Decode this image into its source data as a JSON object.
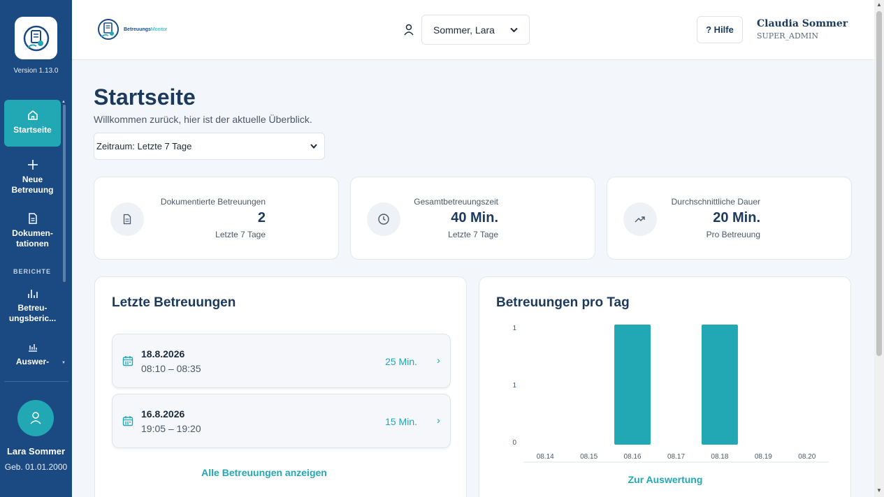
{
  "sidebar": {
    "version": "Version 1.13.0",
    "section_reports": "BERICHTE",
    "items": [
      {
        "label": "Startseite",
        "icon": "home-icon"
      },
      {
        "label": "Neue Betreuung",
        "icon": "plus-icon"
      },
      {
        "label": "Dokumen- tationen",
        "icon": "document-icon"
      },
      {
        "label": "Betreu- ungsberic...",
        "icon": "bar-chart-icon"
      },
      {
        "label": "Auswer-",
        "icon": "bar-chart-small-icon"
      }
    ],
    "user": {
      "name": "Lara Sommer",
      "birth": "Geb. 01.01.2000"
    }
  },
  "header": {
    "brand_main": "Betreuungs",
    "brand_accent": "Monitor",
    "client_value": "Sommer, Lara",
    "help_label": "? Hilfe",
    "user_name": "Claudia Sommer",
    "user_role": "SUPER_ADMIN"
  },
  "main": {
    "title": "Startseite",
    "subtitle": "Willkommen zurück, hier ist der aktuelle Überblick.",
    "range_value": "Zeitraum: Letzte 7 Tage",
    "stats": [
      {
        "label": "Dokumentierte Betreuungen",
        "value": "2",
        "foot": "Letzte 7 Tage",
        "icon": "document-icon"
      },
      {
        "label": "Gesamtbetreuungszeit",
        "value": "40 Min.",
        "foot": "Letzte 7 Tage",
        "icon": "clock-icon"
      },
      {
        "label": "Durchschnittliche Dauer",
        "value": "20 Min.",
        "foot": "Pro Betreuung",
        "icon": "trend-up-icon"
      }
    ],
    "recent": {
      "title": "Letzte Betreuungen",
      "items": [
        {
          "date": "18.8.2026",
          "time": "08:10 – 08:35",
          "duration": "25 Min."
        },
        {
          "date": "16.8.2026",
          "time": "19:05 – 19:20",
          "duration": "15 Min."
        }
      ],
      "all_link": "Alle Betreuungen anzeigen"
    },
    "chart_panel": {
      "title": "Betreuungen pro Tag",
      "link": "Zur Auswertung"
    }
  },
  "chart_data": {
    "type": "bar",
    "title": "Betreuungen pro Tag",
    "categories": [
      "08.14",
      "08.15",
      "08.16",
      "08.17",
      "08.18",
      "08.19",
      "08.20"
    ],
    "values": [
      0,
      0,
      1,
      0,
      1,
      0,
      0
    ],
    "y_tick_labels": [
      "0",
      "1",
      "1"
    ],
    "ylim": [
      0,
      1
    ],
    "grid": false,
    "bar_color": "#22a8b4"
  },
  "colors": {
    "primary": "#1b4a82",
    "accent": "#22a8b4"
  }
}
